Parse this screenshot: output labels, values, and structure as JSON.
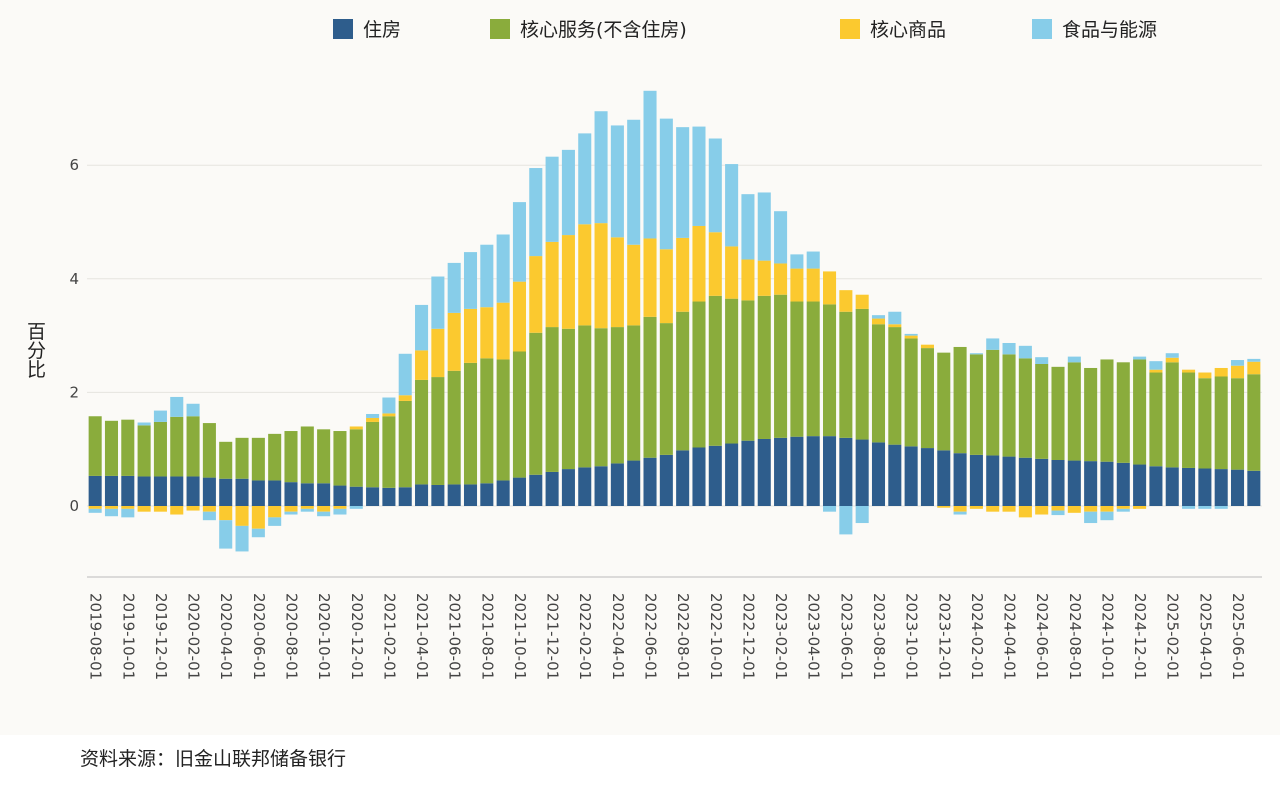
{
  "chart_data": {
    "type": "stacked-bar",
    "y_label": "百分比",
    "source": "资料来源：旧金山联邦储备银行",
    "legend": "top",
    "grid": true,
    "ylim": [
      -1.25,
      7.5
    ],
    "yticks": [
      0,
      2,
      4,
      6
    ],
    "categories": [
      "2019-08-01",
      null,
      "2019-10-01",
      null,
      "2019-12-01",
      null,
      "2020-02-01",
      null,
      "2020-04-01",
      null,
      "2020-06-01",
      null,
      "2020-08-01",
      null,
      "2020-10-01",
      null,
      "2020-12-01",
      null,
      "2021-02-01",
      null,
      "2021-04-01",
      null,
      "2021-06-01",
      null,
      "2021-08-01",
      null,
      "2021-10-01",
      null,
      "2021-12-01",
      null,
      "2022-02-01",
      null,
      "2022-04-01",
      null,
      "2022-06-01",
      null,
      "2022-08-01",
      null,
      "2022-10-01",
      null,
      "2022-12-01",
      null,
      "2023-02-01",
      null,
      "2023-04-01",
      null,
      "2023-06-01",
      null,
      "2023-08-01",
      null,
      "2023-10-01",
      null,
      "2023-12-01",
      null,
      "2024-02-01",
      null,
      "2024-04-01",
      null,
      "2024-06-01",
      null,
      "2024-08-01",
      null,
      "2024-10-01",
      null,
      "2024-12-01",
      null,
      "2025-02-01",
      null,
      "2025-04-01",
      null,
      "2025-06-01",
      null
    ],
    "series": [
      {
        "name": "住房",
        "color": "#2e5d8c",
        "values": [
          0.53,
          0.53,
          0.53,
          0.52,
          0.52,
          0.52,
          0.52,
          0.5,
          0.48,
          0.48,
          0.45,
          0.45,
          0.42,
          0.4,
          0.4,
          0.36,
          0.34,
          0.33,
          0.32,
          0.33,
          0.38,
          0.37,
          0.38,
          0.38,
          0.4,
          0.45,
          0.5,
          0.55,
          0.6,
          0.65,
          0.68,
          0.7,
          0.75,
          0.8,
          0.85,
          0.9,
          0.98,
          1.03,
          1.06,
          1.1,
          1.15,
          1.18,
          1.2,
          1.22,
          1.23,
          1.23,
          1.2,
          1.17,
          1.12,
          1.08,
          1.05,
          1.02,
          0.98,
          0.93,
          0.9,
          0.89,
          0.87,
          0.85,
          0.83,
          0.81,
          0.8,
          0.79,
          0.78,
          0.76,
          0.73,
          0.7,
          0.68,
          0.67,
          0.66,
          0.65,
          0.64,
          0.62
        ]
      },
      {
        "name": "核心服务(不含住房)",
        "color": "#8aac3c",
        "values": [
          1.05,
          0.97,
          0.99,
          0.9,
          0.96,
          1.05,
          1.06,
          0.96,
          0.65,
          0.72,
          0.75,
          0.82,
          0.9,
          1.0,
          0.95,
          0.96,
          1.01,
          1.15,
          1.26,
          1.52,
          1.84,
          1.9,
          2.0,
          2.14,
          2.2,
          2.13,
          2.22,
          2.5,
          2.55,
          2.47,
          2.5,
          2.43,
          2.4,
          2.38,
          2.48,
          2.32,
          2.44,
          2.57,
          2.64,
          2.55,
          2.47,
          2.52,
          2.52,
          2.38,
          2.37,
          2.32,
          2.22,
          2.3,
          2.08,
          2.07,
          1.9,
          1.76,
          1.72,
          1.87,
          1.77,
          1.86,
          1.8,
          1.75,
          1.67,
          1.64,
          1.73,
          1.64,
          1.8,
          1.77,
          1.85,
          1.65,
          1.85,
          1.68,
          1.59,
          1.63,
          1.61,
          1.7
        ]
      },
      {
        "name": "核心商品",
        "color": "#fbc92f",
        "values": [
          -0.05,
          -0.05,
          -0.05,
          -0.1,
          -0.1,
          -0.15,
          -0.08,
          -0.1,
          -0.25,
          -0.35,
          -0.4,
          -0.2,
          -0.1,
          -0.05,
          -0.1,
          -0.05,
          0.05,
          0.07,
          0.05,
          0.1,
          0.52,
          0.85,
          1.02,
          0.95,
          0.9,
          1.0,
          1.23,
          1.35,
          1.5,
          1.65,
          1.78,
          1.85,
          1.58,
          1.42,
          1.38,
          1.3,
          1.3,
          1.33,
          1.12,
          0.92,
          0.72,
          0.62,
          0.55,
          0.58,
          0.58,
          0.58,
          0.38,
          0.25,
          0.1,
          0.05,
          0.05,
          0.06,
          -0.03,
          -0.1,
          -0.05,
          -0.1,
          -0.1,
          -0.2,
          -0.15,
          -0.08,
          -0.12,
          -0.1,
          -0.1,
          -0.05,
          -0.05,
          0.05,
          0.08,
          0.05,
          0.1,
          0.15,
          0.22,
          0.22
        ]
      },
      {
        "name": "食品与能源",
        "color": "#87cde9",
        "values": [
          -0.07,
          -0.13,
          -0.15,
          0.05,
          0.2,
          0.35,
          0.22,
          -0.15,
          -0.5,
          -0.45,
          -0.15,
          -0.15,
          -0.05,
          -0.05,
          -0.08,
          -0.1,
          -0.05,
          0.07,
          0.28,
          0.73,
          0.8,
          0.92,
          0.88,
          1.0,
          1.1,
          1.2,
          1.4,
          1.55,
          1.5,
          1.5,
          1.6,
          1.97,
          1.97,
          2.2,
          2.6,
          2.3,
          1.95,
          1.75,
          1.65,
          1.45,
          1.15,
          1.2,
          0.92,
          0.25,
          0.3,
          -0.1,
          -0.5,
          -0.3,
          0.06,
          0.22,
          0.03,
          0.0,
          0.0,
          -0.05,
          0.02,
          0.2,
          0.2,
          0.22,
          0.12,
          -0.08,
          0.1,
          -0.2,
          -0.15,
          -0.05,
          0.05,
          0.15,
          0.08,
          -0.05,
          -0.05,
          -0.05,
          0.1,
          0.05
        ]
      }
    ]
  }
}
